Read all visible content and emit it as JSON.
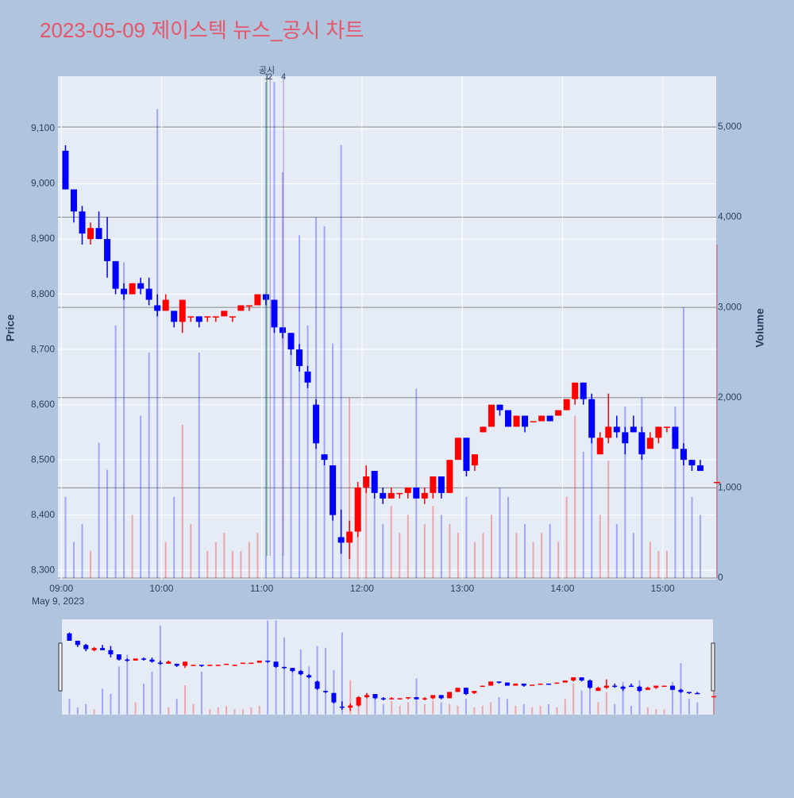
{
  "chart_data": {
    "type": "candlestick",
    "title": "2023-05-09 제이스텍 뉴스_공시 차트",
    "y_axis_label": "Price",
    "y2_axis_label": "Volume",
    "x_axis_date": "May 9, 2023",
    "up_color": "#ff0000",
    "down_color": "#0000ff",
    "grid": true,
    "range_slider": true,
    "x": [
      "09:00",
      "09:05",
      "09:10",
      "09:15",
      "09:20",
      "09:25",
      "09:30",
      "09:35",
      "09:40",
      "09:45",
      "09:50",
      "09:55",
      "10:00",
      "10:05",
      "10:10",
      "10:15",
      "10:20",
      "10:25",
      "10:30",
      "10:35",
      "10:40",
      "10:45",
      "10:50",
      "10:55",
      "11:00",
      "11:05",
      "11:10",
      "11:15",
      "11:20",
      "11:25",
      "11:30",
      "11:35",
      "11:40",
      "11:45",
      "11:50",
      "11:55",
      "12:00",
      "12:05",
      "12:10",
      "12:15",
      "12:20",
      "12:25",
      "12:30",
      "12:35",
      "12:40",
      "12:45",
      "12:50",
      "12:55",
      "13:00",
      "13:05",
      "13:10",
      "13:15",
      "13:20",
      "13:25",
      "13:30",
      "13:35",
      "13:40",
      "13:45",
      "13:50",
      "13:55",
      "14:00",
      "14:05",
      "14:10",
      "14:15",
      "14:20",
      "14:25",
      "14:30",
      "14:35",
      "14:40",
      "14:45",
      "14:50",
      "14:55",
      "15:00",
      "15:05",
      "15:10",
      "15:15",
      "15:20",
      "15:30"
    ],
    "open": [
      9060,
      8990,
      8950,
      8900,
      8920,
      8900,
      8860,
      8810,
      8800,
      8820,
      8810,
      8780,
      8770,
      8770,
      8750,
      8760,
      8760,
      8760,
      8760,
      8760,
      8760,
      8770,
      8780,
      8780,
      8800,
      8790,
      8740,
      8730,
      8700,
      8660,
      8600,
      8510,
      8490,
      8360,
      8350,
      8370,
      8450,
      8480,
      8440,
      8430,
      8440,
      8440,
      8450,
      8430,
      8440,
      8470,
      8440,
      8500,
      8540,
      8490,
      8550,
      8560,
      8600,
      8590,
      8560,
      8580,
      8570,
      8570,
      8580,
      8580,
      8590,
      8610,
      8640,
      8610,
      8510,
      8540,
      8560,
      8550,
      8560,
      8550,
      8520,
      8540,
      8560,
      8560,
      8520,
      8500,
      8490,
      8460
    ],
    "high": [
      9070,
      8990,
      8960,
      8930,
      8950,
      8940,
      8860,
      8820,
      8820,
      8830,
      8830,
      8800,
      8800,
      8770,
      8790,
      8760,
      8760,
      8760,
      8760,
      8770,
      8760,
      8780,
      8780,
      8800,
      8800,
      8790,
      8740,
      8730,
      8710,
      8670,
      8610,
      8510,
      8490,
      8410,
      8390,
      8460,
      8490,
      8480,
      8450,
      8450,
      8440,
      8450,
      8450,
      8450,
      8470,
      8470,
      8500,
      8540,
      8540,
      8510,
      8560,
      8600,
      8600,
      8590,
      8580,
      8580,
      8570,
      8580,
      8580,
      8590,
      8610,
      8640,
      8640,
      8620,
      8550,
      8620,
      8580,
      8560,
      8580,
      8560,
      8550,
      8560,
      8560,
      8560,
      8530,
      8500,
      8500,
      8460
    ],
    "low": [
      8990,
      8930,
      8890,
      8890,
      8900,
      8830,
      8800,
      8790,
      8800,
      8800,
      8780,
      8760,
      8770,
      8740,
      8730,
      8750,
      8740,
      8750,
      8750,
      8760,
      8750,
      8770,
      8770,
      8780,
      8780,
      8730,
      8720,
      8690,
      8660,
      8630,
      8520,
      8490,
      8390,
      8330,
      8320,
      8360,
      8440,
      8430,
      8420,
      8430,
      8430,
      8430,
      8430,
      8420,
      8430,
      8430,
      8440,
      8500,
      8470,
      8480,
      8550,
      8560,
      8580,
      8560,
      8560,
      8550,
      8570,
      8570,
      8570,
      8580,
      8590,
      8600,
      8600,
      8530,
      8510,
      8530,
      8540,
      8510,
      8550,
      8500,
      8520,
      8530,
      8550,
      8520,
      8490,
      8480,
      8480,
      8460
    ],
    "close": [
      8990,
      8950,
      8910,
      8920,
      8900,
      8860,
      8810,
      8800,
      8820,
      8810,
      8790,
      8770,
      8790,
      8750,
      8790,
      8760,
      8750,
      8760,
      8760,
      8770,
      8760,
      8780,
      8780,
      8800,
      8790,
      8740,
      8730,
      8700,
      8670,
      8640,
      8530,
      8500,
      8400,
      8350,
      8370,
      8450,
      8470,
      8440,
      8430,
      8440,
      8440,
      8450,
      8430,
      8440,
      8470,
      8440,
      8500,
      8540,
      8480,
      8510,
      8560,
      8600,
      8590,
      8560,
      8580,
      8560,
      8570,
      8580,
      8570,
      8590,
      8610,
      8640,
      8610,
      8540,
      8540,
      8560,
      8550,
      8530,
      8550,
      8510,
      8540,
      8560,
      8560,
      8520,
      8500,
      8490,
      8480,
      8460
    ],
    "volume": [
      900,
      400,
      600,
      300,
      1500,
      1200,
      2800,
      3500,
      700,
      1800,
      2500,
      5200,
      400,
      900,
      1700,
      600,
      2500,
      300,
      400,
      500,
      300,
      300,
      400,
      500,
      5500,
      5500,
      4500,
      2500,
      3800,
      2800,
      4000,
      3900,
      2600,
      4800,
      2000,
      700,
      1200,
      900,
      600,
      800,
      500,
      700,
      2100,
      600,
      800,
      700,
      600,
      500,
      900,
      400,
      500,
      700,
      1000,
      900,
      500,
      600,
      400,
      500,
      600,
      400,
      900,
      1800,
      1400,
      1900,
      700,
      1300,
      600,
      1900,
      500,
      2000,
      400,
      300,
      300,
      1900,
      3000,
      900,
      700,
      3700
    ],
    "xlim": [
      "08:58",
      "15:32"
    ],
    "xticks": [
      "09:00",
      "10:00",
      "11:00",
      "12:00",
      "13:00",
      "14:00",
      "15:00"
    ],
    "ylim": [
      8283,
      9195
    ],
    "yticks": [
      {
        "value": 8300,
        "label": "8,300"
      },
      {
        "value": 8400,
        "label": "8,400"
      },
      {
        "value": 8500,
        "label": "8,500"
      },
      {
        "value": 8600,
        "label": "8,600"
      },
      {
        "value": 8700,
        "label": "8,700"
      },
      {
        "value": 8800,
        "label": "8,800"
      },
      {
        "value": 8900,
        "label": "8,900"
      },
      {
        "value": 9000,
        "label": "9,000"
      },
      {
        "value": 9100,
        "label": "9,100"
      }
    ],
    "y2lim": [
      -18,
      5563
    ],
    "y2ticks": [
      0,
      {
        "value": 1000,
        "label": "1,000"
      },
      {
        "value": 2000,
        "label": "2,000"
      },
      {
        "value": 3000,
        "label": "3,000"
      },
      {
        "value": 4000,
        "label": "4,000"
      },
      {
        "value": 5000,
        "label": "5,000"
      }
    ],
    "annotations": [
      {
        "text": "공시",
        "x": "11:03",
        "color": "#2ca02c"
      },
      {
        "text": "1",
        "x": "11:03",
        "color": "#2ca02c"
      },
      {
        "text": "2",
        "x": "11:05",
        "color": "#9467bd"
      },
      {
        "text": "4",
        "x": "11:13",
        "color": "#9467bd"
      }
    ]
  }
}
